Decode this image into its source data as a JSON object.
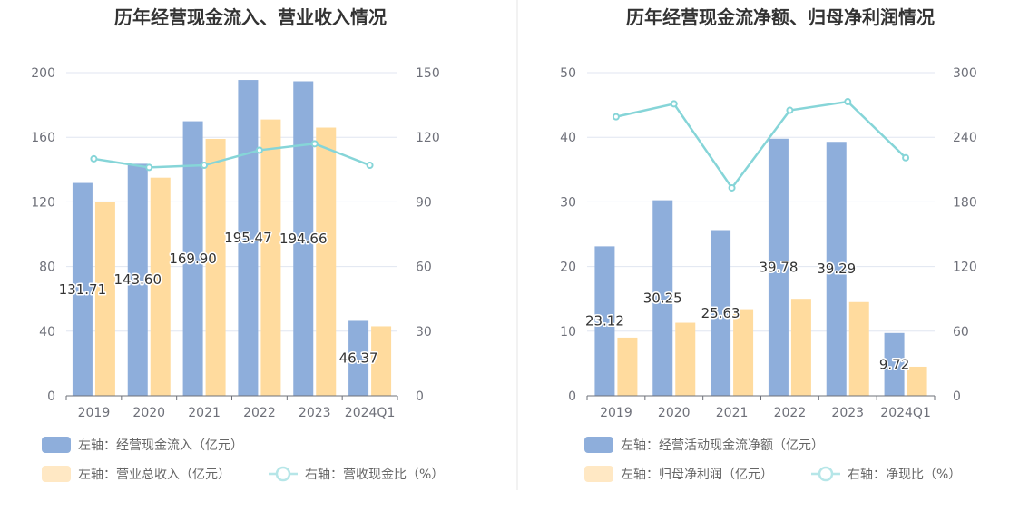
{
  "chart_data": [
    {
      "type": "bar",
      "title": "历年经营现金流入、营业收入情况",
      "categories": [
        "2019",
        "2020",
        "2021",
        "2022",
        "2023",
        "2024Q1"
      ],
      "left_axis": {
        "min": 0,
        "max": 200,
        "ticks": [
          "0",
          "40",
          "80",
          "120",
          "160",
          "200"
        ]
      },
      "right_axis": {
        "min": 0,
        "max": 150,
        "ticks": [
          "0",
          "30",
          "60",
          "90",
          "120",
          "150"
        ]
      },
      "series": [
        {
          "name": "左轴：经营现金流入（亿元）",
          "kind": "bar",
          "axis": "left",
          "color": "#8eaedb",
          "values": [
            131.71,
            143.6,
            169.9,
            195.47,
            194.66,
            46.37
          ],
          "labels": [
            "131.71",
            "143.60",
            "169.90",
            "195.47",
            "194.66",
            "46.37"
          ]
        },
        {
          "name": "左轴：营业总收入（亿元）",
          "kind": "bar",
          "axis": "left",
          "color": "#ffdb9e",
          "values": [
            120,
            135,
            159,
            171,
            166,
            43
          ]
        },
        {
          "name": "右轴：营收现金比（%）",
          "kind": "line",
          "axis": "right",
          "color": "#86d5d8",
          "values": [
            110,
            106,
            107,
            114,
            117,
            107
          ]
        }
      ]
    },
    {
      "type": "bar",
      "title": "历年经营现金流净额、归母净利润情况",
      "categories": [
        "2019",
        "2020",
        "2021",
        "2022",
        "2023",
        "2024Q1"
      ],
      "left_axis": {
        "min": 0,
        "max": 50,
        "ticks": [
          "0",
          "10",
          "20",
          "30",
          "40",
          "50"
        ]
      },
      "right_axis": {
        "min": 0,
        "max": 300,
        "ticks": [
          "0",
          "60",
          "120",
          "180",
          "240",
          "300"
        ]
      },
      "series": [
        {
          "name": "左轴：经营活动现金流净额（亿元）",
          "kind": "bar",
          "axis": "left",
          "color": "#8eaedb",
          "values": [
            23.12,
            30.25,
            25.63,
            39.78,
            39.29,
            9.72
          ],
          "labels": [
            "23.12",
            "30.25",
            "25.63",
            "39.78",
            "39.29",
            "9.72"
          ]
        },
        {
          "name": "左轴：归母净利润（亿元）",
          "kind": "bar",
          "axis": "left",
          "color": "#ffdb9e",
          "values": [
            9.0,
            11.3,
            13.4,
            15.0,
            14.5,
            4.5
          ]
        },
        {
          "name": "右轴：净现比（%）",
          "kind": "line",
          "axis": "right",
          "color": "#86d5d8",
          "values": [
            259,
            271,
            193,
            265,
            273,
            221
          ]
        }
      ]
    }
  ]
}
